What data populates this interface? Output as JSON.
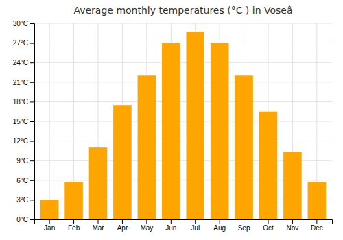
{
  "chart_data": {
    "type": "bar",
    "title": "Average monthly temperatures (°C ) in Voseâ",
    "categories": [
      "Jan",
      "Feb",
      "Mar",
      "Apr",
      "May",
      "Jun",
      "Jul",
      "Aug",
      "Sep",
      "Oct",
      "Nov",
      "Dec"
    ],
    "values": [
      3,
      5.7,
      11,
      17.5,
      22,
      27,
      28.7,
      27,
      22,
      16.5,
      10.3,
      5.7
    ],
    "color": "#FFA500",
    "ylim": [
      0,
      30
    ],
    "yticks": [
      {
        "value": 0,
        "label": "0°C"
      },
      {
        "value": 3,
        "label": "3°C"
      },
      {
        "value": 6,
        "label": "6°C"
      },
      {
        "value": 9,
        "label": "9°C"
      },
      {
        "value": 12,
        "label": "12°C"
      },
      {
        "value": 15,
        "label": "15°C"
      },
      {
        "value": 18,
        "label": "18°C"
      },
      {
        "value": 21,
        "label": "21°C"
      },
      {
        "value": 24,
        "label": "24°C"
      },
      {
        "value": 27,
        "label": "27°C"
      },
      {
        "value": 30,
        "label": "30°C"
      }
    ],
    "grid": true
  }
}
